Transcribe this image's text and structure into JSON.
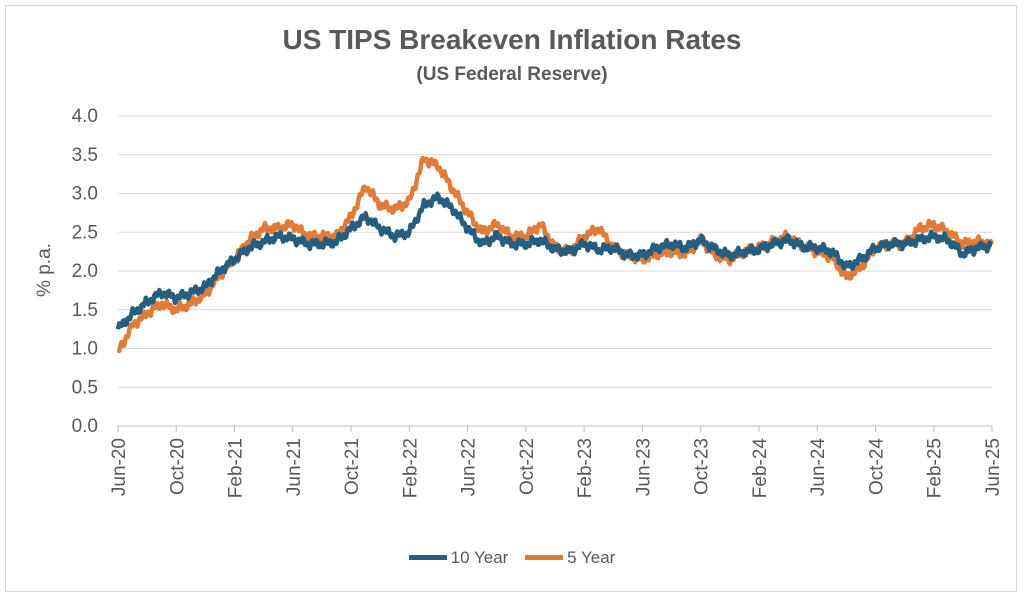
{
  "chart_data": {
    "type": "line",
    "title": "US TIPS Breakeven Inflation Rates",
    "subtitle": "(US Federal Reserve)",
    "ylabel": "% p.a.",
    "xlabel": "",
    "ylim": [
      0,
      4.0
    ],
    "yticks": [
      "0.0",
      "0.5",
      "1.0",
      "1.5",
      "2.0",
      "2.5",
      "3.0",
      "3.5",
      "4.0"
    ],
    "xticks": [
      "Jun-20",
      "Oct-20",
      "Feb-21",
      "Jun-21",
      "Oct-21",
      "Feb-22",
      "Jun-22",
      "Oct-22",
      "Feb-23",
      "Jun-23",
      "Oct-23",
      "Feb-24",
      "Jun-24",
      "Oct-24",
      "Feb-25",
      "Jun-25"
    ],
    "grid": "horizontal",
    "legend": "bottom",
    "x": [
      "Jun-20",
      "Jul-20",
      "Aug-20",
      "Sep-20",
      "Oct-20",
      "Nov-20",
      "Dec-20",
      "Jan-21",
      "Feb-21",
      "Mar-21",
      "Apr-21",
      "May-21",
      "Jun-21",
      "Jul-21",
      "Aug-21",
      "Sep-21",
      "Oct-21",
      "Nov-21",
      "Dec-21",
      "Jan-22",
      "Feb-22",
      "Mar-22",
      "Apr-22",
      "May-22",
      "Jun-22",
      "Jul-22",
      "Aug-22",
      "Sep-22",
      "Oct-22",
      "Nov-22",
      "Dec-22",
      "Jan-23",
      "Feb-23",
      "Mar-23",
      "Apr-23",
      "May-23",
      "Jun-23",
      "Jul-23",
      "Aug-23",
      "Sep-23",
      "Oct-23",
      "Nov-23",
      "Dec-23",
      "Jan-24",
      "Feb-24",
      "Mar-24",
      "Apr-24",
      "May-24",
      "Jun-24",
      "Jul-24",
      "Aug-24",
      "Sep-24",
      "Oct-24",
      "Nov-24",
      "Dec-24",
      "Jan-25",
      "Feb-25",
      "Mar-25",
      "Apr-25",
      "May-25",
      "Jun-25"
    ],
    "series": [
      {
        "name": "10 Year",
        "color": "#255e7e",
        "values": [
          1.25,
          1.45,
          1.6,
          1.72,
          1.65,
          1.72,
          1.8,
          2.0,
          2.15,
          2.3,
          2.38,
          2.45,
          2.42,
          2.35,
          2.35,
          2.38,
          2.55,
          2.7,
          2.55,
          2.45,
          2.5,
          2.85,
          2.95,
          2.8,
          2.55,
          2.35,
          2.45,
          2.35,
          2.35,
          2.4,
          2.28,
          2.25,
          2.35,
          2.28,
          2.3,
          2.2,
          2.2,
          2.3,
          2.35,
          2.3,
          2.4,
          2.28,
          2.2,
          2.25,
          2.28,
          2.35,
          2.4,
          2.32,
          2.3,
          2.25,
          2.05,
          2.15,
          2.3,
          2.35,
          2.35,
          2.4,
          2.45,
          2.4,
          2.22,
          2.3,
          2.33
        ]
      },
      {
        "name": "5 Year",
        "color": "#e07b39",
        "values": [
          0.95,
          1.3,
          1.45,
          1.58,
          1.5,
          1.58,
          1.7,
          1.95,
          2.15,
          2.4,
          2.55,
          2.55,
          2.6,
          2.45,
          2.45,
          2.45,
          2.7,
          3.1,
          2.85,
          2.8,
          2.9,
          3.45,
          3.35,
          3.05,
          2.75,
          2.5,
          2.6,
          2.45,
          2.45,
          2.6,
          2.3,
          2.25,
          2.45,
          2.55,
          2.3,
          2.2,
          2.15,
          2.22,
          2.25,
          2.22,
          2.4,
          2.2,
          2.15,
          2.25,
          2.3,
          2.38,
          2.45,
          2.32,
          2.25,
          2.18,
          1.92,
          2.05,
          2.3,
          2.35,
          2.35,
          2.55,
          2.6,
          2.5,
          2.35,
          2.38,
          2.35
        ]
      }
    ]
  }
}
